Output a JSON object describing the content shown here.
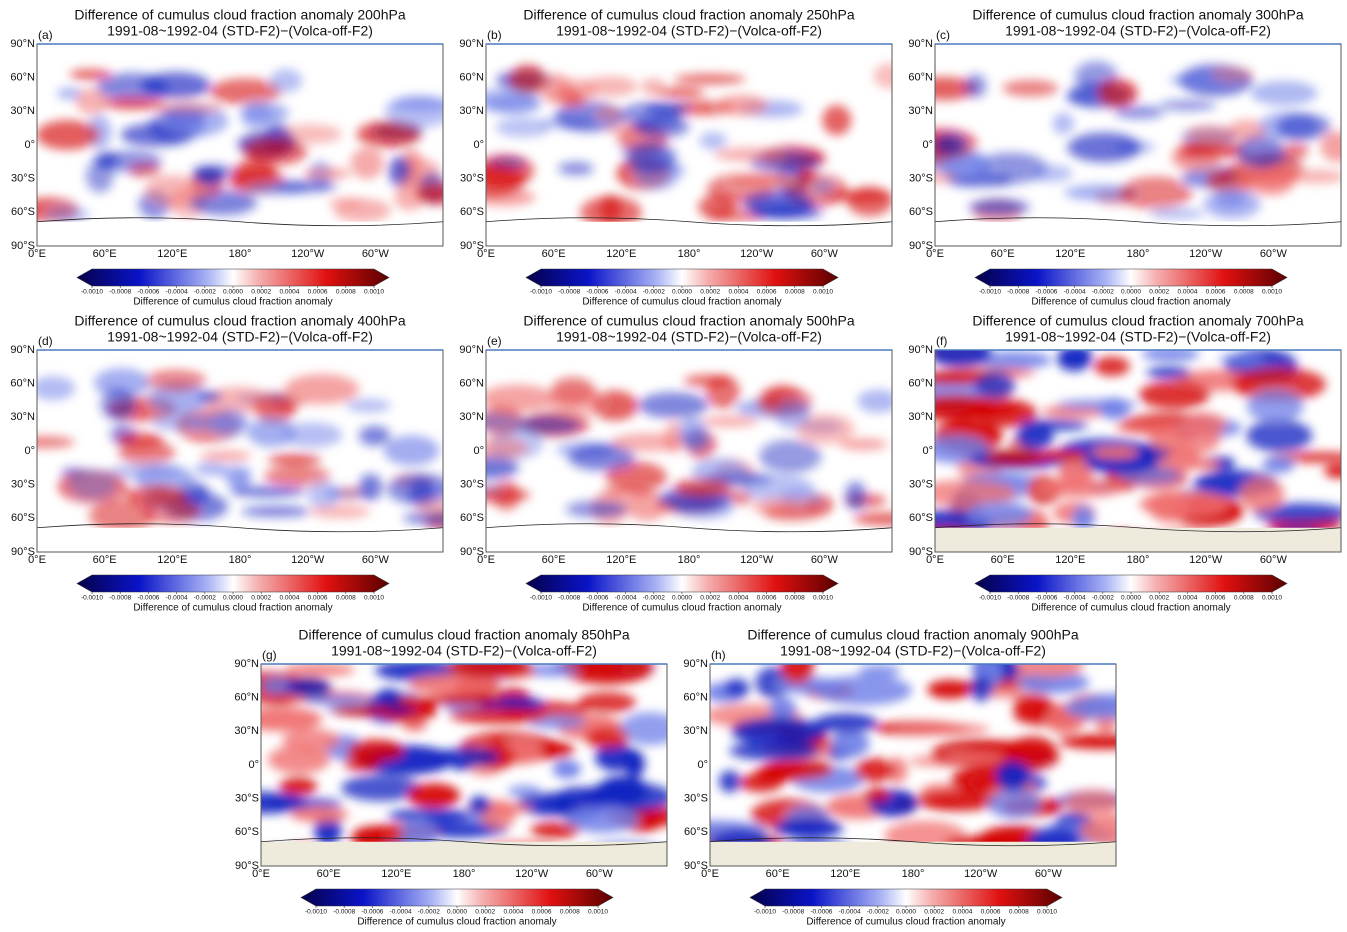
{
  "panels": [
    {
      "label": "(a)",
      "title": "Difference of cumulus cloud fraction anomaly 200hPa",
      "subtitle": "1991-08~1992-04 (STD-F2)−(Volca-off-F2)",
      "lat_ticks": [
        "90°N",
        "60°N",
        "30°N",
        "0°",
        "30°S",
        "60°S",
        "90°S"
      ],
      "lon_ticks": [
        "0°E",
        "60°E",
        "120°E",
        "180°",
        "120°W",
        "60°W"
      ],
      "colorbar": {
        "lim": [
          -0.001,
          0.001
        ],
        "ticks": [
          {
            "value": -0.001,
            "label": "-0.0010"
          },
          {
            "value": -0.0008,
            "label": "-0.0008"
          },
          {
            "value": -0.0006,
            "label": "-0.0006"
          },
          {
            "value": -0.0004,
            "label": "-0.0004"
          },
          {
            "value": -0.0002,
            "label": "-0.0002"
          },
          {
            "value": 0,
            "label": "0.0000"
          },
          {
            "value": 0.0002,
            "label": "0.0002"
          },
          {
            "value": 0.0004,
            "label": "0.0004"
          },
          {
            "value": 0.0006,
            "label": "0.0006"
          },
          {
            "value": 0.0008,
            "label": "0.0008"
          },
          {
            "value": 0.001,
            "label": "0.0010"
          }
        ],
        "label": "Difference of cumulus cloud fraction anomaly"
      }
    },
    {
      "label": "(b)",
      "title": "Difference of cumulus cloud fraction anomaly 250hPa",
      "subtitle": "1991-08~1992-04 (STD-F2)−(Volca-off-F2)",
      "lat_ticks": [
        "90°N",
        "60°N",
        "30°N",
        "0°",
        "30°S",
        "60°S",
        "90°S"
      ],
      "lon_ticks": [
        "0°E",
        "60°E",
        "120°E",
        "180°",
        "120°W",
        "60°W"
      ],
      "colorbar": {
        "lim": [
          -0.001,
          0.001
        ],
        "ticks": [
          {
            "value": -0.001,
            "label": "-0.0010"
          },
          {
            "value": -0.0008,
            "label": "-0.0008"
          },
          {
            "value": -0.0006,
            "label": "-0.0006"
          },
          {
            "value": -0.0004,
            "label": "-0.0004"
          },
          {
            "value": -0.0002,
            "label": "-0.0002"
          },
          {
            "value": 0,
            "label": "0.0000"
          },
          {
            "value": 0.0002,
            "label": "0.0002"
          },
          {
            "value": 0.0004,
            "label": "0.0004"
          },
          {
            "value": 0.0006,
            "label": "0.0006"
          },
          {
            "value": 0.0008,
            "label": "0.0008"
          },
          {
            "value": 0.001,
            "label": "0.0010"
          }
        ],
        "label": "Difference of cumulus cloud fraction anomaly"
      }
    },
    {
      "label": "(c)",
      "title": "Difference of cumulus cloud fraction anomaly 300hPa",
      "subtitle": "1991-08~1992-04 (STD-F2)−(Volca-off-F2)",
      "lat_ticks": [
        "90°N",
        "60°N",
        "30°N",
        "0°",
        "30°S",
        "60°S",
        "90°S"
      ],
      "lon_ticks": [
        "0°E",
        "60°E",
        "120°E",
        "180°",
        "120°W",
        "60°W"
      ],
      "colorbar": {
        "lim": [
          -0.001,
          0.001
        ],
        "ticks": [
          {
            "value": -0.001,
            "label": "-0.0010"
          },
          {
            "value": -0.0008,
            "label": "-0.0008"
          },
          {
            "value": -0.0006,
            "label": "-0.0006"
          },
          {
            "value": -0.0004,
            "label": "-0.0004"
          },
          {
            "value": -0.0002,
            "label": "-0.0002"
          },
          {
            "value": 0,
            "label": "0.0000"
          },
          {
            "value": 0.0002,
            "label": "0.0002"
          },
          {
            "value": 0.0004,
            "label": "0.0004"
          },
          {
            "value": 0.0006,
            "label": "0.0006"
          },
          {
            "value": 0.0008,
            "label": "0.0008"
          },
          {
            "value": 0.001,
            "label": "0.0010"
          }
        ],
        "label": "Difference of cumulus cloud fraction anomaly"
      }
    },
    {
      "label": "(d)",
      "title": "Difference of cumulus cloud fraction anomaly 400hPa",
      "subtitle": "1991-08~1992-04 (STD-F2)−(Volca-off-F2)",
      "lat_ticks": [
        "90°N",
        "60°N",
        "30°N",
        "0°",
        "30°S",
        "60°S",
        "90°S"
      ],
      "lon_ticks": [
        "0°E",
        "60°E",
        "120°E",
        "180°",
        "120°W",
        "60°W"
      ],
      "colorbar": {
        "lim": [
          -0.001,
          0.001
        ],
        "ticks": [
          {
            "value": -0.001,
            "label": "-0.0010"
          },
          {
            "value": -0.0008,
            "label": "-0.0008"
          },
          {
            "value": -0.0006,
            "label": "-0.0006"
          },
          {
            "value": -0.0004,
            "label": "-0.0004"
          },
          {
            "value": -0.0002,
            "label": "-0.0002"
          },
          {
            "value": 0,
            "label": "0.0000"
          },
          {
            "value": 0.0002,
            "label": "0.0002"
          },
          {
            "value": 0.0004,
            "label": "0.0004"
          },
          {
            "value": 0.0006,
            "label": "0.0006"
          },
          {
            "value": 0.0008,
            "label": "0.0008"
          },
          {
            "value": 0.001,
            "label": "0.0010"
          }
        ],
        "label": "Difference of cumulus cloud fraction anomaly"
      }
    },
    {
      "label": "(e)",
      "title": "Difference of cumulus cloud fraction anomaly 500hPa",
      "subtitle": "1991-08~1992-04 (STD-F2)−(Volca-off-F2)",
      "lat_ticks": [
        "90°N",
        "60°N",
        "30°N",
        "0°",
        "30°S",
        "60°S",
        "90°S"
      ],
      "lon_ticks": [
        "0°E",
        "60°E",
        "120°E",
        "180°",
        "120°W",
        "60°W"
      ],
      "colorbar": {
        "lim": [
          -0.001,
          0.001
        ],
        "ticks": [
          {
            "value": -0.001,
            "label": "-0.0010"
          },
          {
            "value": -0.0008,
            "label": "-0.0008"
          },
          {
            "value": -0.0006,
            "label": "-0.0006"
          },
          {
            "value": -0.0004,
            "label": "-0.0004"
          },
          {
            "value": -0.0002,
            "label": "-0.0002"
          },
          {
            "value": 0,
            "label": "0.0000"
          },
          {
            "value": 0.0002,
            "label": "0.0002"
          },
          {
            "value": 0.0004,
            "label": "0.0004"
          },
          {
            "value": 0.0006,
            "label": "0.0006"
          },
          {
            "value": 0.0008,
            "label": "0.0008"
          },
          {
            "value": 0.001,
            "label": "0.0010"
          }
        ],
        "label": "Difference of cumulus cloud fraction anomaly"
      }
    },
    {
      "label": "(f)",
      "title": "Difference of cumulus cloud fraction anomaly 700hPa",
      "subtitle": "1991-08~1992-04 (STD-F2)−(Volca-off-F2)",
      "lat_ticks": [
        "90°N",
        "60°N",
        "30°N",
        "0°",
        "30°S",
        "60°S",
        "90°S"
      ],
      "lon_ticks": [
        "0°E",
        "60°E",
        "120°E",
        "180°",
        "120°W",
        "60°W"
      ],
      "colorbar": {
        "lim": [
          -0.001,
          0.001
        ],
        "ticks": [
          {
            "value": -0.001,
            "label": "-0.0010"
          },
          {
            "value": -0.0008,
            "label": "-0.0008"
          },
          {
            "value": -0.0006,
            "label": "-0.0006"
          },
          {
            "value": -0.0004,
            "label": "-0.0004"
          },
          {
            "value": -0.0002,
            "label": "-0.0002"
          },
          {
            "value": 0,
            "label": "0.0000"
          },
          {
            "value": 0.0002,
            "label": "0.0002"
          },
          {
            "value": 0.0004,
            "label": "0.0004"
          },
          {
            "value": 0.0006,
            "label": "0.0006"
          },
          {
            "value": 0.0008,
            "label": "0.0008"
          },
          {
            "value": 0.001,
            "label": "0.0010"
          }
        ],
        "label": "Difference of cumulus cloud fraction anomaly"
      }
    },
    {
      "label": "(g)",
      "title": "Difference of cumulus cloud fraction anomaly 850hPa",
      "subtitle": "1991-08~1992-04 (STD-F2)−(Volca-off-F2)",
      "lat_ticks": [
        "90°N",
        "60°N",
        "30°N",
        "0°",
        "30°S",
        "60°S",
        "90°S"
      ],
      "lon_ticks": [
        "0°E",
        "60°E",
        "120°E",
        "180°",
        "120°W",
        "60°W"
      ],
      "colorbar": {
        "lim": [
          -0.001,
          0.001
        ],
        "ticks": [
          {
            "value": -0.001,
            "label": "-0.0010"
          },
          {
            "value": -0.0008,
            "label": "-0.0008"
          },
          {
            "value": -0.0006,
            "label": "-0.0006"
          },
          {
            "value": -0.0004,
            "label": "-0.0004"
          },
          {
            "value": -0.0002,
            "label": "-0.0002"
          },
          {
            "value": 0,
            "label": "0.0000"
          },
          {
            "value": 0.0002,
            "label": "0.0002"
          },
          {
            "value": 0.0004,
            "label": "0.0004"
          },
          {
            "value": 0.0006,
            "label": "0.0006"
          },
          {
            "value": 0.0008,
            "label": "0.0008"
          },
          {
            "value": 0.001,
            "label": "0.0010"
          }
        ],
        "label": "Difference of cumulus cloud fraction anomaly"
      }
    },
    {
      "label": "(h)",
      "title": "Difference of cumulus cloud fraction anomaly 900hPa",
      "subtitle": "1991-08~1992-04 (STD-F2)−(Volca-off-F2)",
      "lat_ticks": [
        "90°N",
        "60°N",
        "30°N",
        "0°",
        "30°S",
        "60°S",
        "90°S"
      ],
      "lon_ticks": [
        "0°E",
        "60°E",
        "120°E",
        "180°",
        "120°W",
        "60°W"
      ],
      "colorbar": {
        "lim": [
          -0.001,
          0.001
        ],
        "ticks": [
          {
            "value": -0.001,
            "label": "-0.0010"
          },
          {
            "value": -0.0008,
            "label": "-0.0008"
          },
          {
            "value": -0.0006,
            "label": "-0.0006"
          },
          {
            "value": -0.0004,
            "label": "-0.0004"
          },
          {
            "value": -0.0002,
            "label": "-0.0002"
          },
          {
            "value": 0,
            "label": "0.0000"
          },
          {
            "value": 0.0002,
            "label": "0.0002"
          },
          {
            "value": 0.0004,
            "label": "0.0004"
          },
          {
            "value": 0.0006,
            "label": "0.0006"
          },
          {
            "value": 0.0008,
            "label": "0.0008"
          },
          {
            "value": 0.001,
            "label": "0.0010"
          }
        ],
        "label": "Difference of cumulus cloud fraction anomaly"
      }
    }
  ]
}
